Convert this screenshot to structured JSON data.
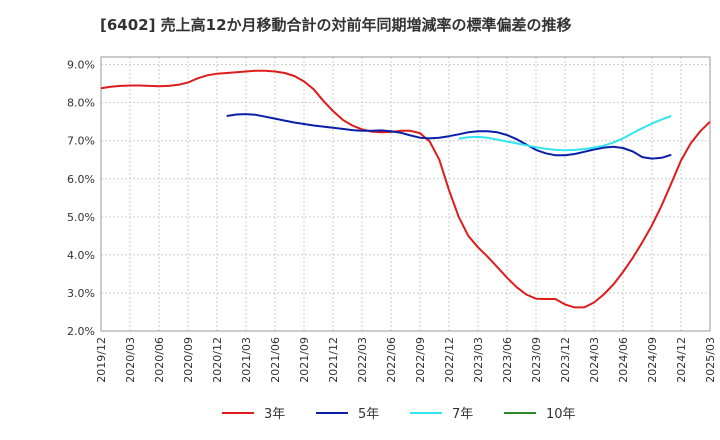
{
  "chart_data": {
    "type": "line",
    "title": "[6402]  売上高12か月移動合計の対前年同期増減率の標準偏差の推移",
    "xlabel": "",
    "ylabel": "",
    "x_ticks": [
      "2019/12",
      "2020/03",
      "2020/06",
      "2020/09",
      "2020/12",
      "2021/03",
      "2021/06",
      "2021/09",
      "2021/12",
      "2022/03",
      "2022/06",
      "2022/09",
      "2022/12",
      "2023/03",
      "2023/06",
      "2023/09",
      "2023/12",
      "2024/03",
      "2024/06",
      "2024/09",
      "2024/12",
      "2025/03"
    ],
    "y_ticks": [
      "2.0%",
      "3.0%",
      "4.0%",
      "5.0%",
      "6.0%",
      "7.0%",
      "8.0%",
      "9.0%"
    ],
    "ylim": [
      2.0,
      9.2
    ],
    "grid": true,
    "legend_position": "bottom",
    "series": [
      {
        "name": "3年",
        "color": "#dd1c1c",
        "start": "2019/12",
        "values": [
          8.38,
          8.42,
          8.44,
          8.45,
          8.45,
          8.44,
          8.43,
          8.44,
          8.47,
          8.53,
          8.64,
          8.72,
          8.76,
          8.78,
          8.8,
          8.82,
          8.84,
          8.84,
          8.82,
          8.78,
          8.7,
          8.56,
          8.35,
          8.05,
          7.78,
          7.55,
          7.4,
          7.3,
          7.24,
          7.22,
          7.23,
          7.26,
          7.26,
          7.2,
          6.98,
          6.5,
          5.7,
          5.0,
          4.5,
          4.2,
          3.95,
          3.68,
          3.4,
          3.15,
          2.96,
          2.85,
          2.84,
          2.84,
          2.7,
          2.62,
          2.62,
          2.75,
          2.96,
          3.22,
          3.55,
          3.92,
          4.33,
          4.78,
          5.3,
          5.88,
          6.48,
          6.93,
          7.25,
          7.5
        ]
      },
      {
        "name": "5年",
        "color": "#0a1fa8",
        "start": "2021/01",
        "values": [
          7.65,
          7.69,
          7.7,
          7.68,
          7.63,
          7.58,
          7.53,
          7.48,
          7.44,
          7.4,
          7.37,
          7.34,
          7.31,
          7.28,
          7.26,
          7.26,
          7.27,
          7.25,
          7.21,
          7.14,
          7.08,
          7.06,
          7.08,
          7.12,
          7.17,
          7.22,
          7.25,
          7.25,
          7.22,
          7.15,
          7.04,
          6.9,
          6.76,
          6.67,
          6.62,
          6.62,
          6.65,
          6.71,
          6.77,
          6.82,
          6.84,
          6.81,
          6.72,
          6.57,
          6.53,
          6.55,
          6.63
        ]
      },
      {
        "name": "7年",
        "color": "#33e5f0",
        "start": "2023/01",
        "values": [
          7.05,
          7.09,
          7.1,
          7.08,
          7.03,
          6.98,
          6.93,
          6.88,
          6.83,
          6.79,
          6.76,
          6.75,
          6.76,
          6.78,
          6.82,
          6.87,
          6.95,
          7.06,
          7.2,
          7.33,
          7.45,
          7.56,
          7.65
        ]
      },
      {
        "name": "10年",
        "color": "#2a8a2a",
        "start": "2023/01",
        "values": []
      }
    ]
  }
}
